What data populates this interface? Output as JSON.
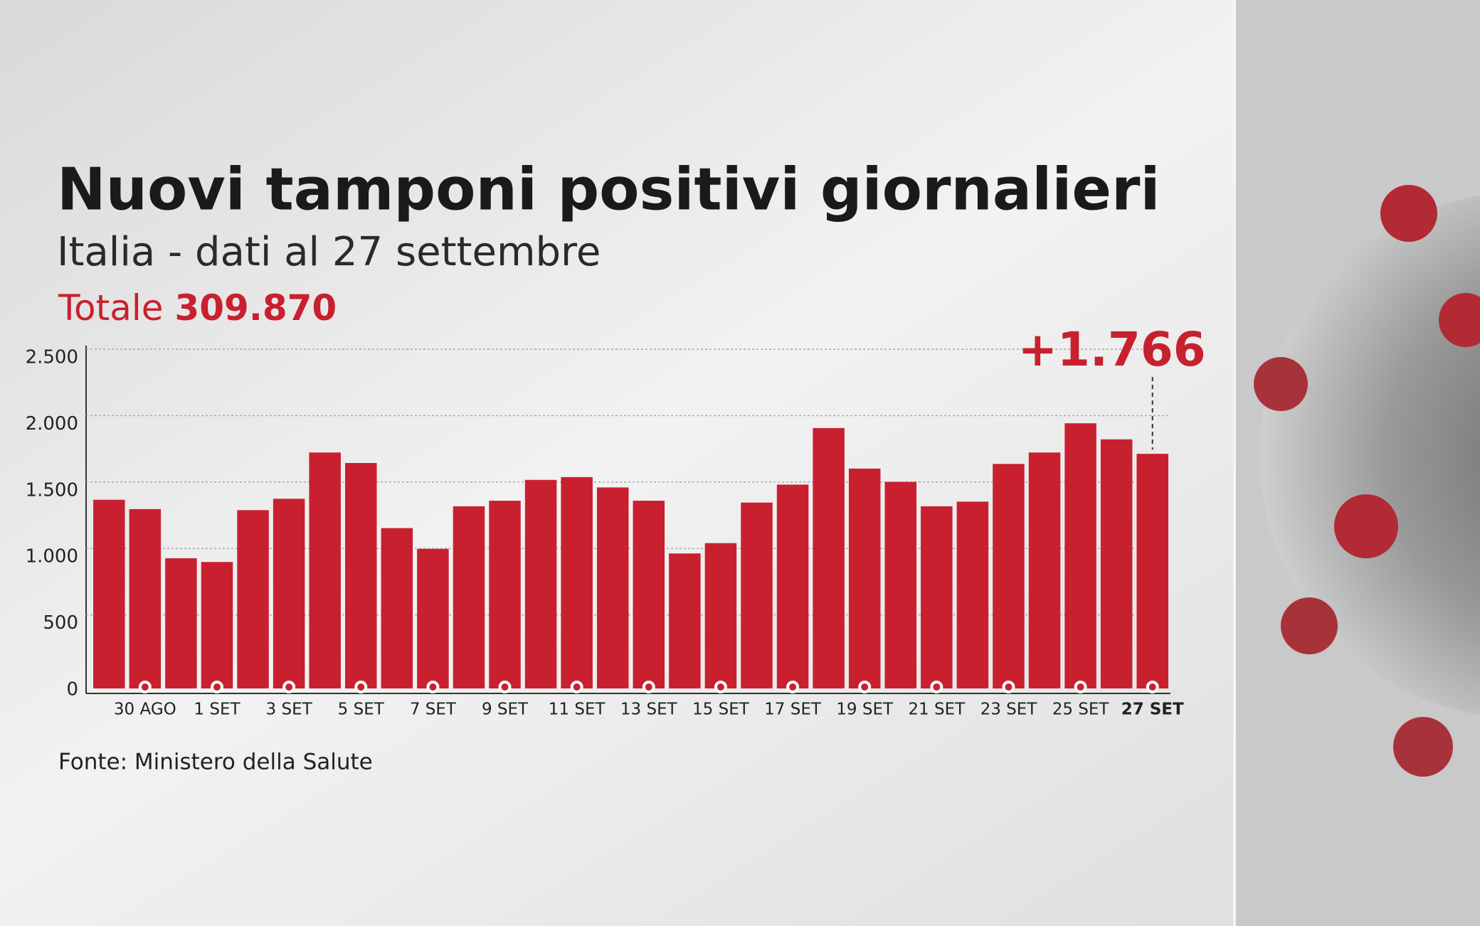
{
  "chart_data": {
    "type": "bar",
    "title": "Nuovi tamponi positivi giornalieri",
    "subtitle": "Italia - dati al 27 settembre",
    "total_label": "Totale",
    "total_value": "309.870",
    "source": "Fonte: Ministero della Salute",
    "categories": [
      null,
      "30 AGO",
      null,
      "1 SET",
      null,
      "3 SET",
      null,
      "5 SET",
      null,
      "7 SET",
      null,
      "9 SET",
      null,
      "11 SET",
      null,
      "13 SET",
      null,
      "15 SET",
      null,
      "17 SET",
      null,
      "19 SET",
      null,
      "21 SET",
      null,
      "23 SET",
      null,
      "25 SET",
      null,
      "27 SET"
    ],
    "values": [
      1420,
      1350,
      980,
      952,
      1342,
      1428,
      1776,
      1697,
      1207,
      1051,
      1371,
      1413,
      1570,
      1591,
      1513,
      1413,
      1016,
      1094,
      1399,
      1534,
      1960,
      1655,
      1555,
      1371,
      1406,
      1690,
      1776,
      1996,
      1875,
      1766
    ],
    "value_labels": [
      null,
      null,
      null,
      null,
      null,
      null,
      null,
      null,
      null,
      null,
      null,
      null,
      null,
      null,
      null,
      null,
      null,
      null,
      null,
      null,
      null,
      null,
      null,
      null,
      null,
      null,
      null,
      null,
      null,
      "+1.766"
    ],
    "color": "#c8202f",
    "ylim": [
      0,
      2500
    ],
    "yticks": [
      0,
      500,
      {
        "value": 1000,
        "label": "1.000"
      },
      {
        "value": 1500,
        "label": "1.500"
      },
      {
        "value": 2000,
        "label": "2.000"
      },
      {
        "value": 2500,
        "label": "2.500"
      }
    ],
    "grid": true
  }
}
